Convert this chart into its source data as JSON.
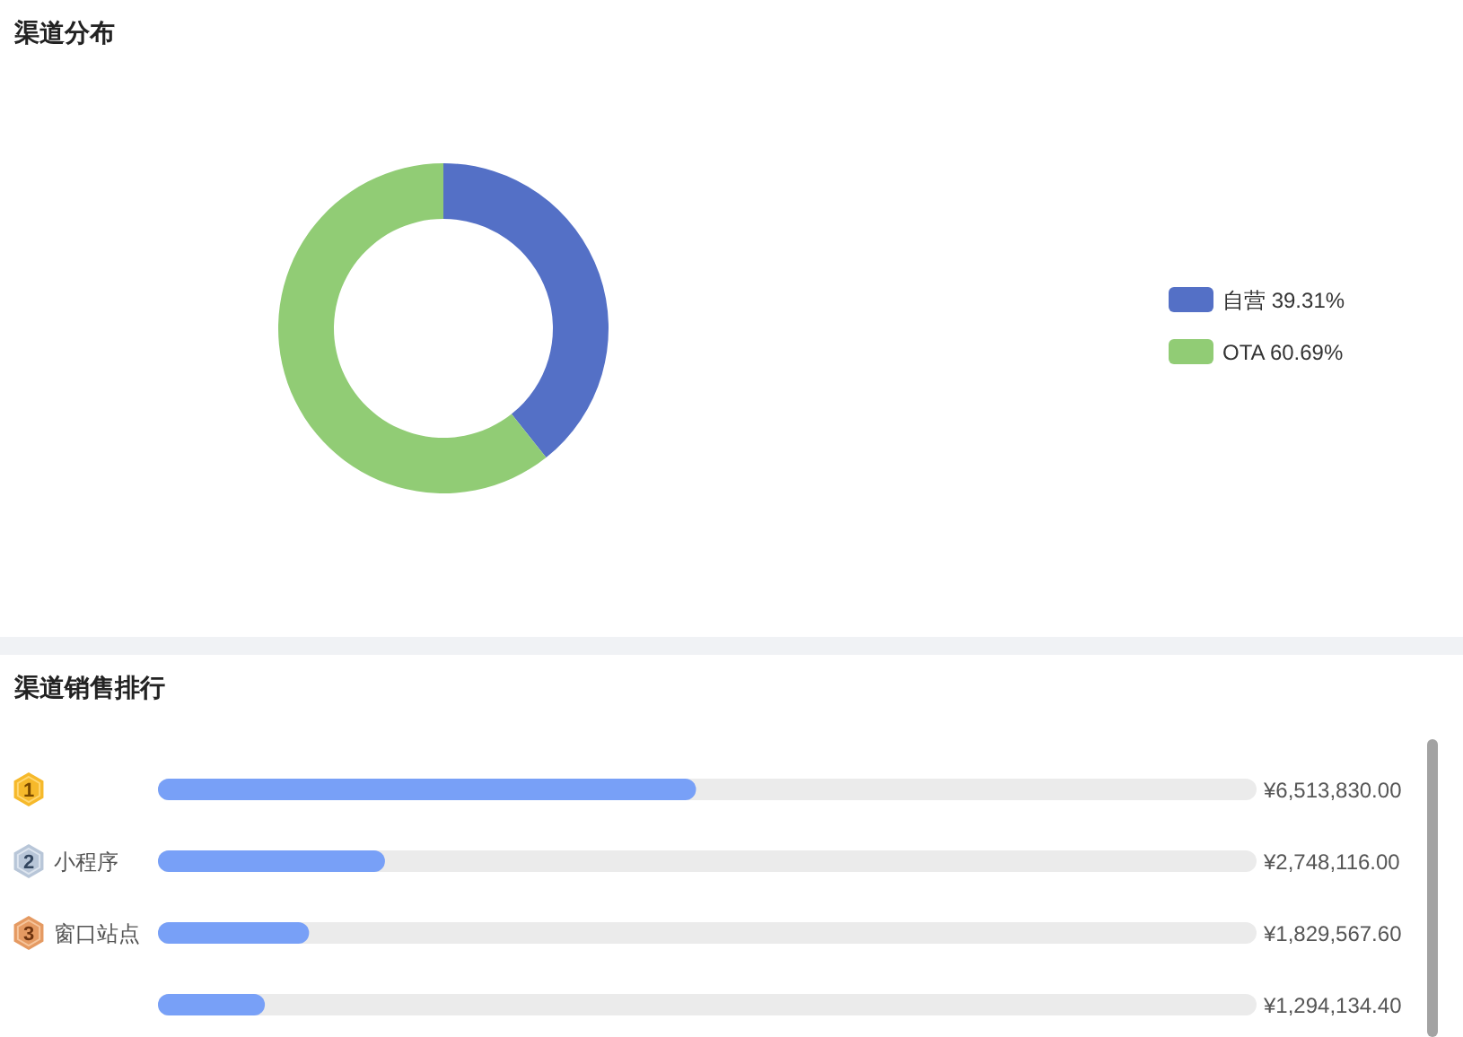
{
  "chart_data": [
    {
      "type": "donut",
      "title": "渠道分布",
      "categories": [
        "自营",
        "OTA"
      ],
      "values": [
        39.31,
        60.69
      ],
      "colors": [
        "#5470c6",
        "#91cc75"
      ],
      "value_labels": [
        "39.31%",
        "60.69%"
      ],
      "legend": "right"
    },
    {
      "type": "bar",
      "orientation": "horizontal",
      "title": "渠道销售排行",
      "categories": [
        null,
        "小程序",
        "窗口站点",
        null
      ],
      "values": [
        6513830,
        2748116,
        1829567.6,
        1294134.4
      ],
      "color": "#78a0f7",
      "value_labels": [
        "¥6,513,830.00",
        "¥2,748,116.00",
        "¥1,829,567.60",
        "¥1,294,134.40"
      ],
      "xlim": [
        0,
        13300000
      ],
      "tick_labels": "y",
      "annotations": [
        "1",
        "2",
        "3"
      ]
    }
  ]
}
